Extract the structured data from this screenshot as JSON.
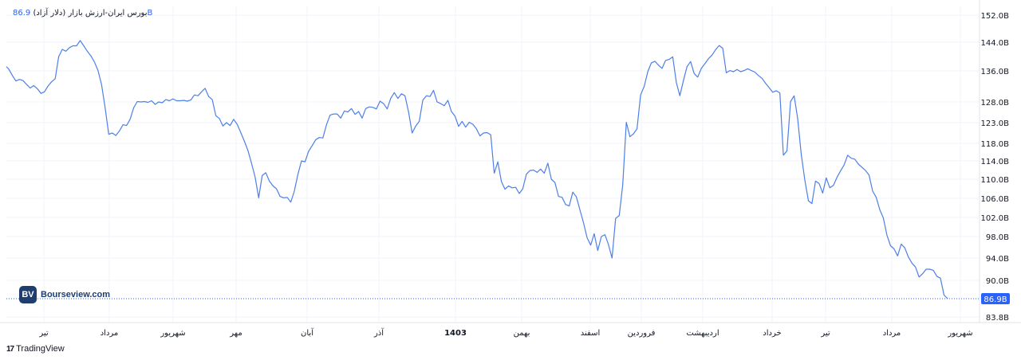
{
  "legend": {
    "title": "بورس ایران-ارزش بازار (دلار آزاد)",
    "value": "86.9B"
  },
  "logo": {
    "mark": "BV",
    "text": "Bourseview.com"
  },
  "footer": {
    "icon": "tradingview-logo-icon",
    "text": "TradingView"
  },
  "colors": {
    "line": "#4d7fe8",
    "accent": "#2962ff"
  },
  "chart_data": {
    "type": "line",
    "title": "بورس ایران-ارزش بازار (دلار آزاد)",
    "unit": "B",
    "last_value": 86.9,
    "last_label": "86.9B",
    "y_ticks": [
      {
        "value": 152,
        "label": "152.0B"
      },
      {
        "value": 144,
        "label": "144.0B"
      },
      {
        "value": 136,
        "label": "136.0B"
      },
      {
        "value": 128,
        "label": "128.0B"
      },
      {
        "value": 123,
        "label": "123.0B"
      },
      {
        "value": 118,
        "label": "118.0B"
      },
      {
        "value": 114,
        "label": "114.0B"
      },
      {
        "value": 110,
        "label": "110.0B"
      },
      {
        "value": 106,
        "label": "106.0B"
      },
      {
        "value": 102,
        "label": "102.0B"
      },
      {
        "value": 98,
        "label": "98.0B"
      },
      {
        "value": 94,
        "label": "94.0B"
      },
      {
        "value": 90,
        "label": "90.0B"
      },
      {
        "value": 83.8,
        "label": "83.8B"
      }
    ],
    "x_ticks": [
      {
        "label": "تیر",
        "bold": false
      },
      {
        "label": "مرداد",
        "bold": false
      },
      {
        "label": "شهریور",
        "bold": false
      },
      {
        "label": "مهر",
        "bold": false
      },
      {
        "label": "آبان",
        "bold": false
      },
      {
        "label": "آذر",
        "bold": false
      },
      {
        "label": "1403",
        "bold": true
      },
      {
        "label": "بهمن",
        "bold": false
      },
      {
        "label": "اسفند",
        "bold": false
      },
      {
        "label": "فروردین",
        "bold": false
      },
      {
        "label": "اردیبهشت",
        "bold": false
      },
      {
        "label": "خرداد",
        "bold": false
      },
      {
        "label": "تیر",
        "bold": false
      },
      {
        "label": "مرداد",
        "bold": false
      },
      {
        "label": "شهریور",
        "bold": false
      }
    ],
    "grid": true,
    "series": [
      {
        "values": [
          [
            0,
            137.2
          ],
          [
            2,
            136.5
          ],
          [
            5,
            134.8
          ],
          [
            8,
            133.4
          ],
          [
            11,
            133.8
          ],
          [
            14,
            133.5
          ],
          [
            17,
            132.5
          ],
          [
            20,
            131.6
          ],
          [
            23,
            132.2
          ],
          [
            26,
            131.4
          ],
          [
            29,
            130.2
          ],
          [
            32,
            130.6
          ],
          [
            35,
            132.1
          ],
          [
            38,
            133.2
          ],
          [
            41,
            134
          ],
          [
            44,
            140
          ],
          [
            47,
            142
          ],
          [
            50,
            141.5
          ],
          [
            53,
            142.5
          ],
          [
            56,
            143
          ],
          [
            59,
            143
          ],
          [
            62,
            144.5
          ],
          [
            65,
            143
          ],
          [
            68,
            141.5
          ],
          [
            71,
            140.2
          ],
          [
            74,
            138.5
          ],
          [
            77,
            136.1
          ],
          [
            80,
            132.5
          ],
          [
            83,
            126.6
          ],
          [
            86,
            120.2
          ],
          [
            89,
            120.5
          ],
          [
            92,
            119.9
          ],
          [
            95,
            121
          ],
          [
            98,
            122.5
          ],
          [
            101,
            122.3
          ],
          [
            104,
            123.8
          ],
          [
            107,
            126.6
          ],
          [
            110,
            128.1
          ],
          [
            113,
            128
          ],
          [
            116,
            128.1
          ],
          [
            119,
            127.9
          ],
          [
            122,
            128.3
          ],
          [
            125,
            127.4
          ],
          [
            128,
            128
          ],
          [
            131,
            127.8
          ],
          [
            134,
            128.6
          ],
          [
            137,
            128.3
          ],
          [
            140,
            128.8
          ],
          [
            143,
            128.3
          ],
          [
            146,
            128.3
          ],
          [
            149,
            128.4
          ],
          [
            152,
            128.2
          ],
          [
            155,
            128.5
          ],
          [
            158,
            129.8
          ],
          [
            161,
            129.6
          ],
          [
            164,
            130.6
          ],
          [
            167,
            131.5
          ],
          [
            170,
            129.4
          ],
          [
            173,
            128.6
          ],
          [
            176,
            124.7
          ],
          [
            179,
            124
          ],
          [
            182,
            122.2
          ],
          [
            185,
            123
          ],
          [
            188,
            122.3
          ],
          [
            191,
            123.8
          ],
          [
            194,
            122.6
          ],
          [
            197,
            120.6
          ],
          [
            200,
            118.5
          ],
          [
            203,
            116.4
          ],
          [
            206,
            113.5
          ],
          [
            209,
            110.5
          ],
          [
            212,
            106.1
          ],
          [
            215,
            110.8
          ],
          [
            218,
            111.4
          ],
          [
            221,
            109.6
          ],
          [
            224,
            108.6
          ],
          [
            227,
            108
          ],
          [
            230,
            106.4
          ],
          [
            233,
            106.1
          ],
          [
            236,
            106.2
          ],
          [
            239,
            105.2
          ],
          [
            242,
            107.5
          ],
          [
            245,
            111.1
          ],
          [
            248,
            114
          ],
          [
            251,
            113.8
          ],
          [
            254,
            116.2
          ],
          [
            257,
            117.5
          ],
          [
            260,
            118.9
          ],
          [
            263,
            119.4
          ],
          [
            266,
            119.3
          ],
          [
            269,
            122.5
          ],
          [
            272,
            124.8
          ],
          [
            275,
            125.1
          ],
          [
            278,
            125.1
          ],
          [
            281,
            124.1
          ],
          [
            284,
            125.8
          ],
          [
            287,
            125.6
          ],
          [
            290,
            126.4
          ],
          [
            293,
            125
          ],
          [
            296,
            125.7
          ],
          [
            299,
            124.1
          ],
          [
            302,
            126.4
          ],
          [
            305,
            126.8
          ],
          [
            308,
            126.7
          ],
          [
            311,
            126.3
          ],
          [
            314,
            128.2
          ],
          [
            317,
            127.6
          ],
          [
            320,
            126.3
          ],
          [
            323,
            128.9
          ],
          [
            326,
            130.4
          ],
          [
            329,
            128.9
          ],
          [
            332,
            130.1
          ],
          [
            335,
            129.6
          ],
          [
            338,
            125.6
          ],
          [
            341,
            120.5
          ],
          [
            344,
            122.2
          ],
          [
            347,
            123.3
          ],
          [
            350,
            128.5
          ],
          [
            353,
            129.6
          ],
          [
            356,
            129.4
          ],
          [
            359,
            131
          ],
          [
            362,
            128
          ],
          [
            365,
            127.6
          ],
          [
            368,
            127.1
          ],
          [
            371,
            128.4
          ],
          [
            374,
            125.7
          ],
          [
            377,
            124.6
          ],
          [
            380,
            122.1
          ],
          [
            383,
            123.3
          ],
          [
            386,
            121.9
          ],
          [
            389,
            123.1
          ],
          [
            392,
            122.6
          ],
          [
            395,
            121.5
          ],
          [
            398,
            119.8
          ],
          [
            401,
            120.5
          ],
          [
            404,
            120.6
          ],
          [
            407,
            120.1
          ],
          [
            410,
            111.3
          ],
          [
            413,
            113.8
          ],
          [
            416,
            109.5
          ],
          [
            419,
            107.9
          ],
          [
            422,
            108.6
          ],
          [
            425,
            108.2
          ],
          [
            428,
            108.3
          ],
          [
            431,
            107
          ],
          [
            434,
            108
          ],
          [
            437,
            111.1
          ],
          [
            440,
            111.9
          ],
          [
            443,
            112
          ],
          [
            446,
            111.5
          ],
          [
            449,
            112.2
          ],
          [
            452,
            111.3
          ],
          [
            455,
            113.5
          ],
          [
            458,
            110
          ],
          [
            461,
            109.3
          ],
          [
            464,
            106.4
          ],
          [
            467,
            106.2
          ],
          [
            470,
            104.7
          ],
          [
            473,
            104.4
          ],
          [
            476,
            107.3
          ],
          [
            479,
            106.3
          ],
          [
            482,
            103.6
          ],
          [
            485,
            100.9
          ],
          [
            488,
            97.8
          ],
          [
            491,
            96.4
          ],
          [
            494,
            98.6
          ],
          [
            497,
            95.4
          ],
          [
            500,
            98
          ],
          [
            503,
            98.4
          ],
          [
            506,
            96.5
          ],
          [
            509,
            94
          ],
          [
            512,
            101.8
          ],
          [
            515,
            102.4
          ],
          [
            518,
            108.8
          ],
          [
            521,
            123.1
          ],
          [
            524,
            119.6
          ],
          [
            527,
            120.3
          ],
          [
            530,
            121.5
          ],
          [
            533,
            129.8
          ],
          [
            536,
            132
          ],
          [
            539,
            135.8
          ],
          [
            542,
            138.2
          ],
          [
            545,
            138.7
          ],
          [
            548,
            137.6
          ],
          [
            551,
            136.7
          ],
          [
            554,
            138.9
          ],
          [
            557,
            139.2
          ],
          [
            560,
            139.9
          ],
          [
            563,
            133
          ],
          [
            566,
            129.6
          ],
          [
            569,
            133.5
          ],
          [
            572,
            137.2
          ],
          [
            575,
            138.6
          ],
          [
            578,
            135.3
          ],
          [
            581,
            134.4
          ],
          [
            584,
            136.7
          ],
          [
            587,
            138
          ],
          [
            590,
            139.4
          ],
          [
            593,
            140.4
          ],
          [
            596,
            141.9
          ],
          [
            599,
            143.1
          ],
          [
            602,
            142.3
          ],
          [
            605,
            135.5
          ],
          [
            608,
            136.1
          ],
          [
            611,
            135.8
          ],
          [
            614,
            136.4
          ],
          [
            617,
            135.8
          ],
          [
            620,
            136.1
          ],
          [
            623,
            136.6
          ],
          [
            626,
            136.1
          ],
          [
            629,
            135.7
          ],
          [
            632,
            134.8
          ],
          [
            635,
            134.1
          ],
          [
            638,
            132.8
          ],
          [
            641,
            131.7
          ],
          [
            644,
            130.5
          ],
          [
            647,
            130.9
          ],
          [
            650,
            130.3
          ],
          [
            653,
            115.3
          ],
          [
            656,
            116.3
          ],
          [
            659,
            128.1
          ],
          [
            662,
            129.6
          ],
          [
            665,
            124
          ],
          [
            668,
            115.5
          ],
          [
            671,
            109.8
          ],
          [
            674,
            105.5
          ],
          [
            677,
            104.9
          ],
          [
            680,
            109.6
          ],
          [
            683,
            109.1
          ],
          [
            686,
            107.1
          ],
          [
            689,
            110.3
          ],
          [
            692,
            108.2
          ],
          [
            695,
            108.7
          ],
          [
            698,
            110.4
          ],
          [
            701,
            111.8
          ],
          [
            704,
            113.1
          ],
          [
            707,
            115.3
          ],
          [
            710,
            114.6
          ],
          [
            713,
            114.4
          ],
          [
            716,
            113.3
          ],
          [
            719,
            112.6
          ],
          [
            722,
            111.9
          ],
          [
            725,
            110.9
          ],
          [
            728,
            107.5
          ],
          [
            731,
            106.2
          ],
          [
            734,
            103.6
          ],
          [
            737,
            101.9
          ],
          [
            740,
            98.3
          ],
          [
            743,
            96.3
          ],
          [
            746,
            95.7
          ],
          [
            749,
            94.4
          ],
          [
            752,
            96.6
          ],
          [
            755,
            95.9
          ],
          [
            758,
            94.2
          ],
          [
            761,
            93.1
          ],
          [
            764,
            92.4
          ],
          [
            767,
            90.6
          ],
          [
            770,
            91.2
          ],
          [
            773,
            92
          ],
          [
            776,
            92
          ],
          [
            779,
            91.8
          ],
          [
            782,
            90.7
          ],
          [
            785,
            90.4
          ],
          [
            788,
            87.5
          ],
          [
            791,
            86.9
          ]
        ]
      }
    ]
  }
}
